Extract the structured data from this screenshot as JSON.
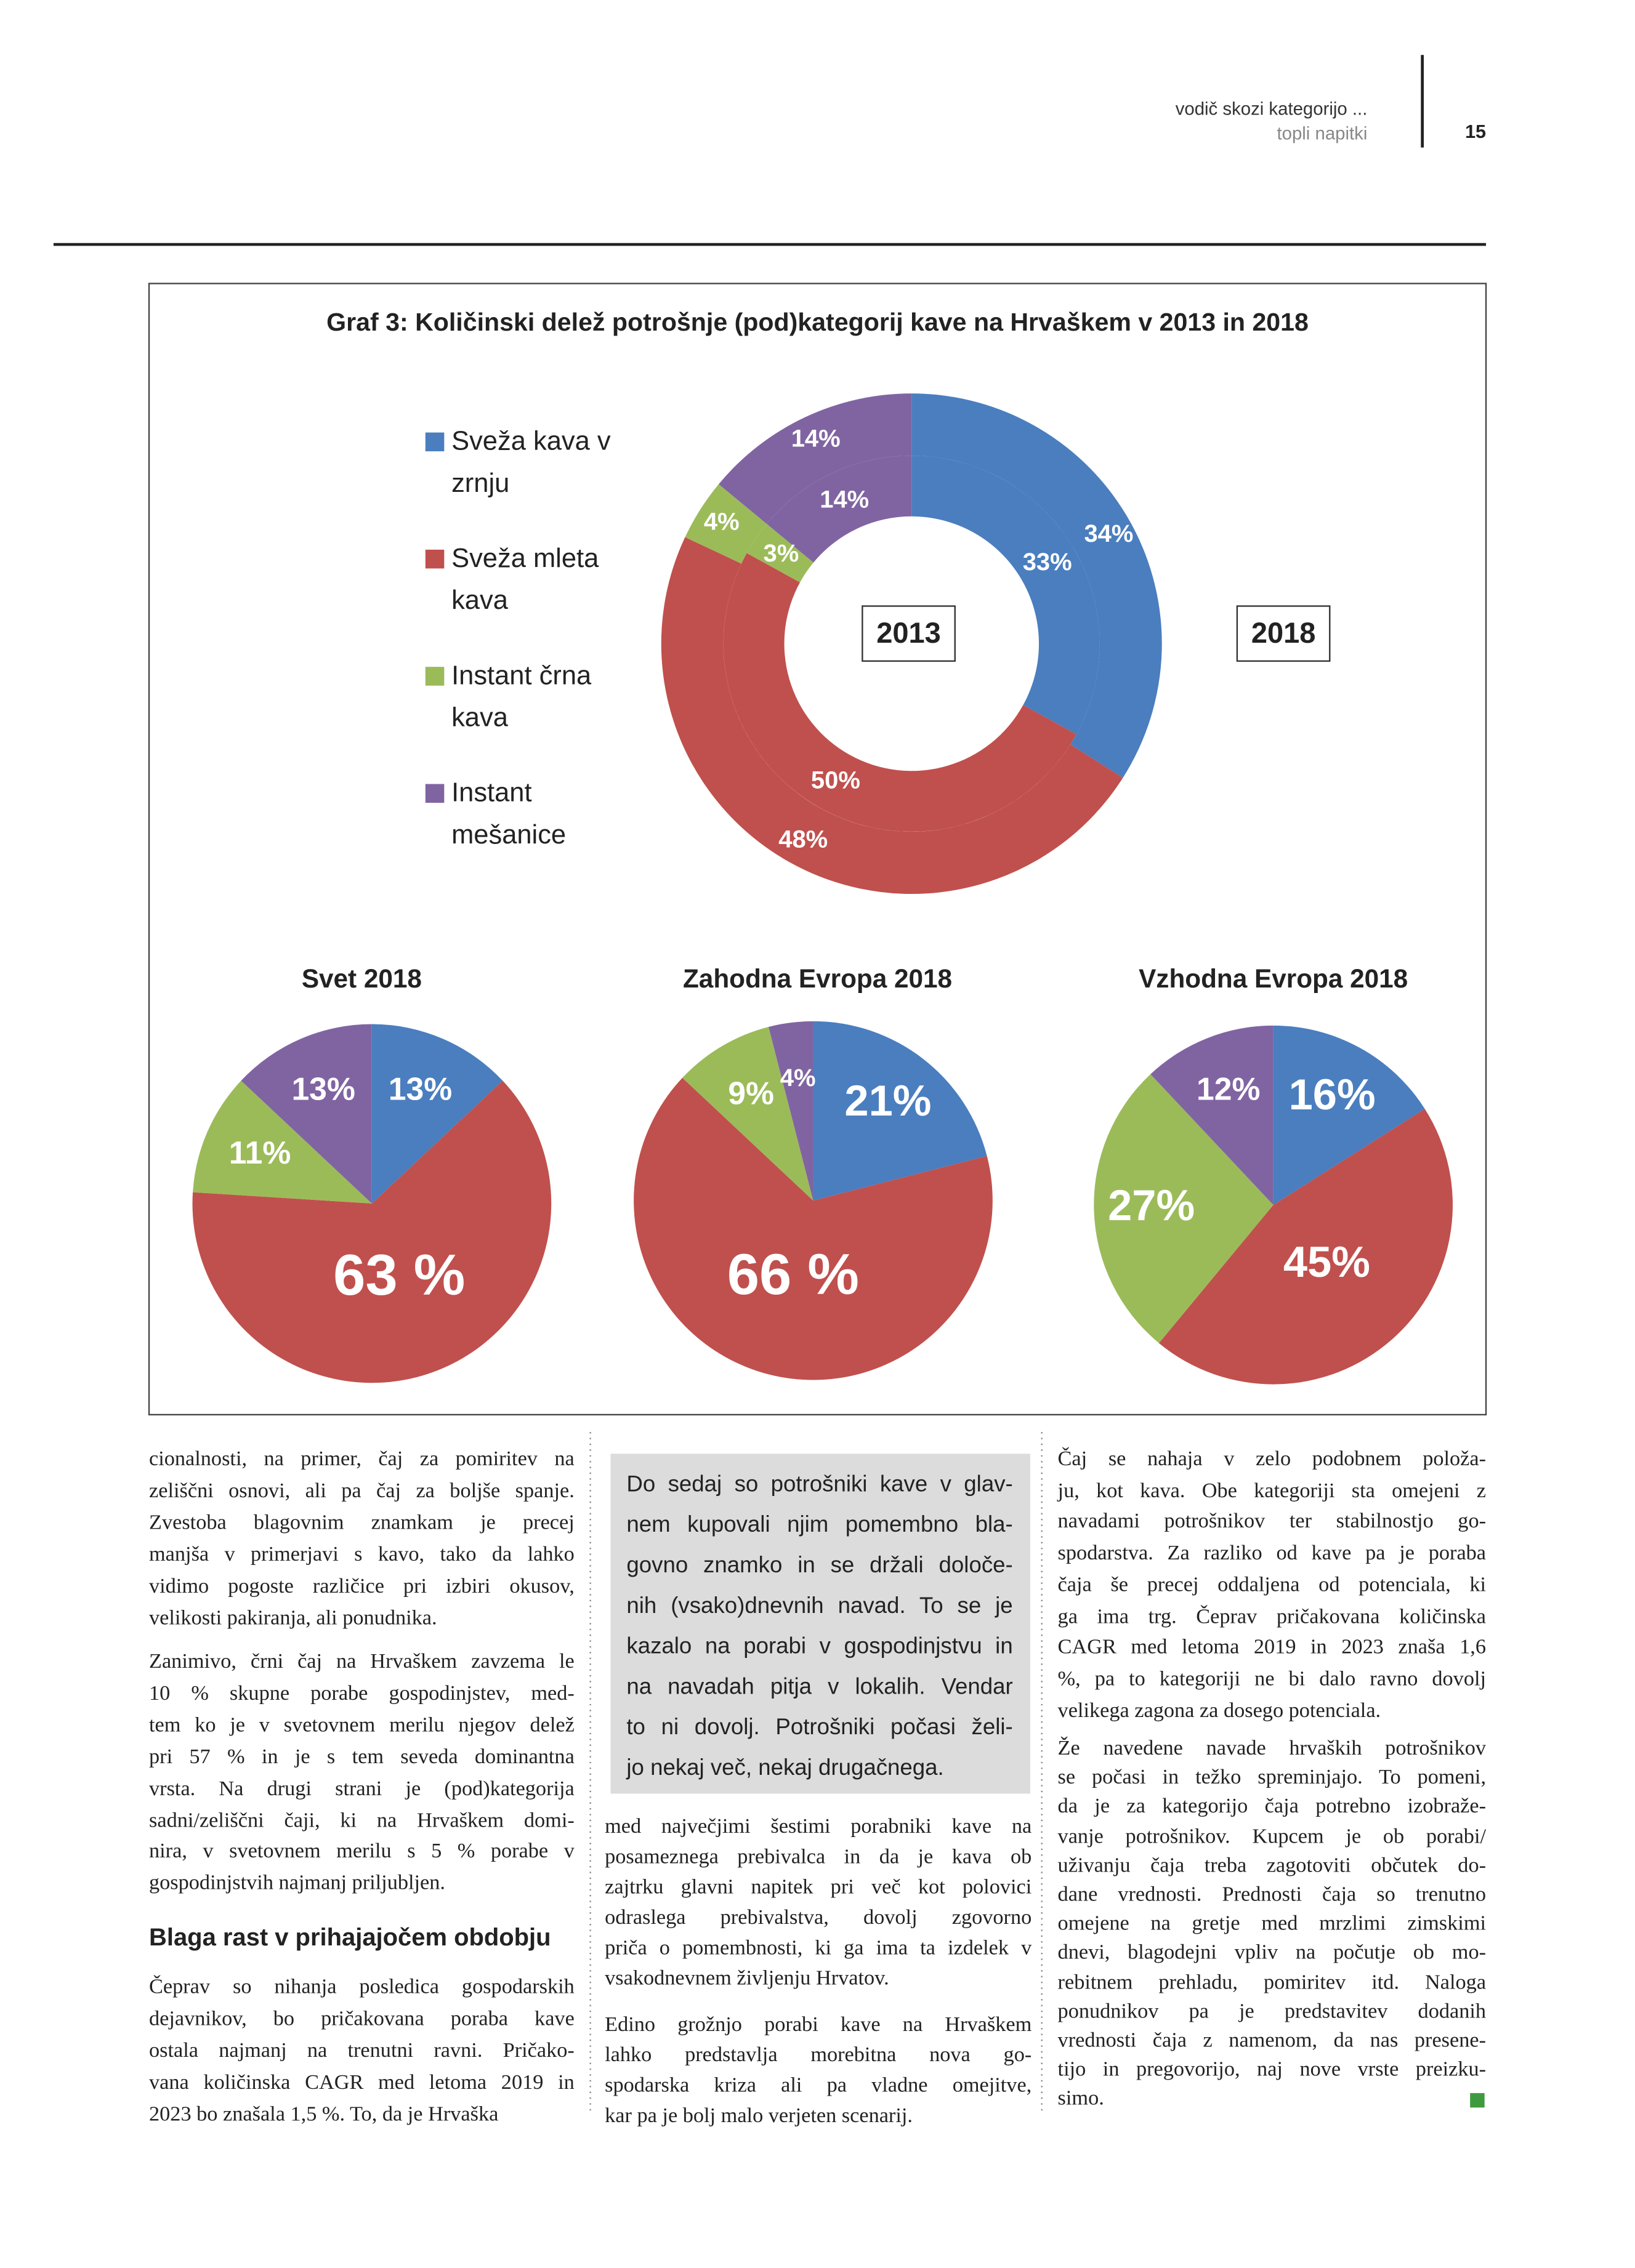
{
  "header": {
    "section": "vodič skozi kategorijo ...",
    "subsection": "topli napitki",
    "page_number": "15"
  },
  "chart_data": [
    {
      "type": "donut",
      "title": "Graf 3: Količinski delež potrošnje (pod)kategorij kave na Hrvaškem v 2013 in 2018",
      "categories": [
        "Sveža kava v zrnju",
        "Sveža mleta kava",
        "Instant črna kava",
        "Instant mešanice"
      ],
      "colors": [
        "#4a7ebf",
        "#c0504d",
        "#9bbb59",
        "#8064a2"
      ],
      "series": [
        {
          "name": "2013",
          "values": [
            33,
            50,
            3,
            14
          ],
          "value_labels": [
            "33%",
            "50%",
            "3%",
            "14%"
          ]
        },
        {
          "name": "2018",
          "values": [
            34,
            48,
            4,
            14
          ],
          "value_labels": [
            "34%",
            "48%",
            "4%",
            "14%"
          ]
        }
      ]
    },
    {
      "type": "pie",
      "title": "Svet 2018",
      "colors": [
        "#4a7ebf",
        "#c0504d",
        "#9bbb59",
        "#8064a2"
      ],
      "values": [
        13,
        63,
        11,
        13
      ],
      "value_labels": [
        "13%",
        "63 %",
        "11%",
        "13%"
      ]
    },
    {
      "type": "pie",
      "title": "Zahodna Evropa 2018",
      "colors": [
        "#4a7ebf",
        "#c0504d",
        "#9bbb59",
        "#8064a2"
      ],
      "values": [
        21,
        66,
        9,
        4
      ],
      "value_labels": [
        "21%",
        "66 %",
        "9%",
        "4%"
      ]
    },
    {
      "type": "pie",
      "title": "Vzhodna Evropa 2018",
      "colors": [
        "#4a7ebf",
        "#c0504d",
        "#9bbb59",
        "#8064a2"
      ],
      "values": [
        16,
        45,
        27,
        12
      ],
      "value_labels": [
        "16%",
        "45%",
        "27%",
        "12%"
      ]
    }
  ],
  "columns": [
    {
      "paragraphs": [
        [
          "cionalnosti, na primer, čaj za pomiritev na",
          "zeliščni osnovi, ali pa čaj za boljše spanje.",
          "Zvestoba blagovnim znamkam je precej",
          "manjša v primerjavi s kavo, tako da lahko",
          "vidimo pogoste različice pri izbiri okusov,",
          "velikosti pakiranja, ali ponudnika."
        ],
        [
          "Zanimivo, črni čaj na Hrvaškem zavzema le",
          "10 % skupne porabe gospodinjstev, med-",
          "tem ko je v svetovnem merilu njegov delež",
          "pri 57 % in je s tem seveda dominantna",
          "vrsta. Na drugi strani je (pod)kategorija",
          "sadni/zeliščni čaji, ki na Hrvaškem domi-",
          "nira, v svetovnem merilu s 5 % porabe v",
          "gospodinjstvih najmanj priljubljen."
        ]
      ],
      "heading": "Blaga rast v prihajajočem obdobju",
      "paragraphs_after_heading": [
        [
          "Čeprav so nihanja posledica gospodarskih",
          "dejavnikov, bo pričakovana poraba kave",
          "ostala najmanj na trenutni ravni. Pričako-",
          "vana količinska CAGR med letoma 2019 in",
          "2023 bo znašala 1,5 %. To, da je Hrvaška"
        ]
      ]
    },
    {
      "pull_quote": [
        "Do sedaj so potrošniki kave v glav-",
        "nem kupovali njim pomembno bla-",
        "govno znamko in se držali določe-",
        "nih (vsako)dnevnih navad. To se je",
        "kazalo na porabi v gospodinjstvu in",
        "na navadah pitja v lokalih. Vendar",
        "to ni dovolj. Potrošniki počasi želi-",
        "jo nekaj več, nekaj drugačnega."
      ],
      "paragraphs": [
        [
          "med največjimi šestimi porabniki kave na",
          "posameznega prebivalca in da je kava ob",
          "zajtrku glavni napitek pri več kot polovici",
          "odraslega prebivalstva, dovolj zgovorno",
          "priča o pomembnosti, ki ga ima ta izdelek v",
          "vsakodnevnem življenju Hrvatov."
        ],
        [
          "Edino grožnjo porabi kave na Hrvaškem",
          "lahko predstavlja morebitna nova go-",
          "spodarska kriza ali pa vladne omejitve,",
          "kar pa je bolj malo verjeten scenarij."
        ]
      ]
    },
    {
      "paragraphs": [
        [
          "Čaj se nahaja v zelo podobnem položa-",
          "ju, kot kava. Obe kategoriji sta omejeni z",
          "navadami potrošnikov ter stabilnostjo go-",
          "spodarstva. Za razliko od kave pa je poraba",
          "čaja še precej oddaljena od potenciala, ki",
          "ga ima trg. Čeprav pričakovana količinska",
          "CAGR med letoma 2019 in 2023 znaša 1,6",
          "%, pa to kategoriji ne bi dalo ravno dovolj",
          "velikega zagona za dosego potenciala."
        ],
        [
          "Že navedene navade hrvaških potrošnikov",
          "se počasi in težko spreminjajo. To pomeni,",
          "da je za kategorijo čaja potrebno izobraže-",
          "vanje potrošnikov. Kupcem je ob porabi/",
          "uživanju čaja treba zagotoviti občutek do-",
          "dane vrednosti. Prednosti čaja so trenutno",
          "omejene na gretje med mrzlimi zimskimi",
          "dnevi, blagodejni vpliv na počutje ob mo-",
          "rebitnem prehladu, pomiritev itd. Naloga",
          "ponudnikov pa je predstavitev dodanih",
          "vrednosti čaja z namenom, da nas presene-",
          "tijo in pregovorijo, naj nove vrste preizku-",
          "simo."
        ]
      ]
    }
  ]
}
